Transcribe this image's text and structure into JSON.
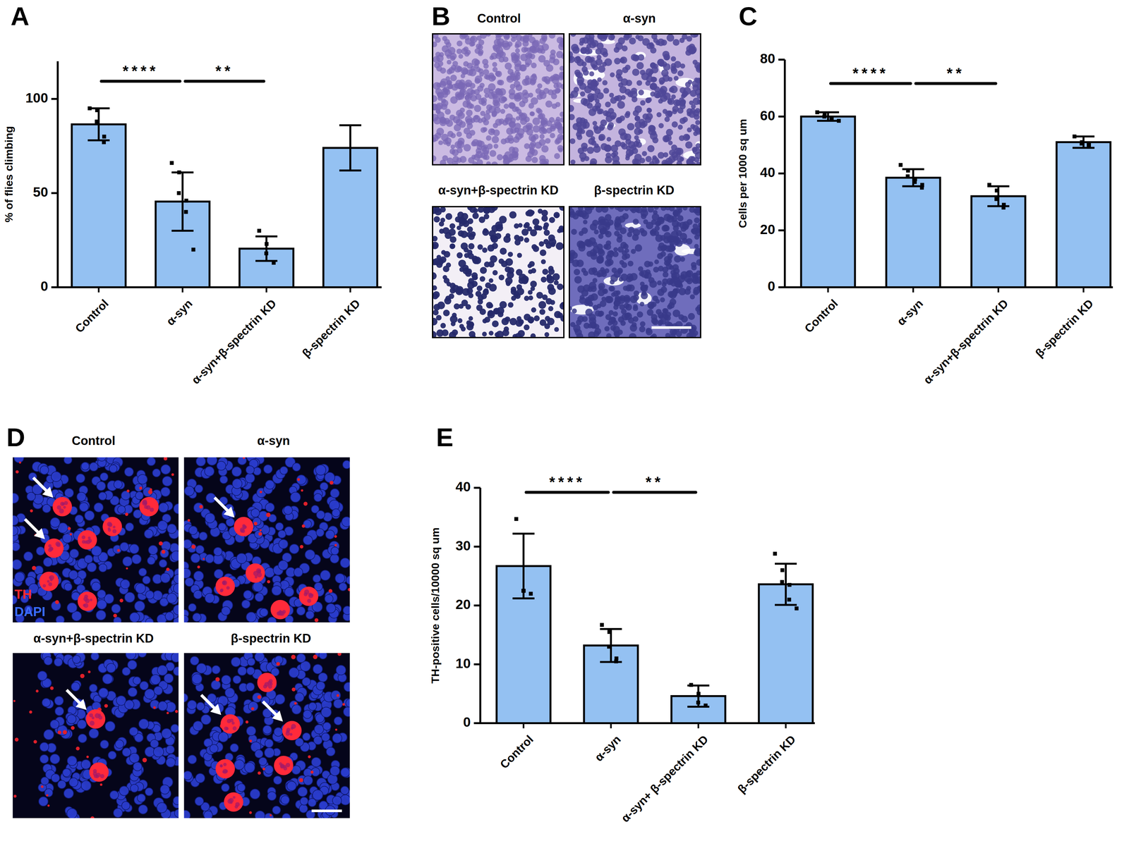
{
  "chart_data": [
    {
      "panel": "A",
      "type": "bar",
      "y_label": "% of flies climbing",
      "categories": [
        "Control",
        "α-syn",
        "α-syn+β-spectrin KD",
        "β-spectrin KD"
      ],
      "values": [
        86.5,
        45.5,
        20.5,
        74
      ],
      "errors": [
        8.5,
        15.5,
        6.5,
        12
      ],
      "points": [
        [
          95,
          94,
          88,
          80,
          77
        ],
        [
          66,
          61,
          50,
          46,
          40,
          20
        ],
        [
          30,
          23,
          18,
          13
        ],
        []
      ],
      "color": "#94c1f2",
      "ylim": [
        0,
        120
      ],
      "yticks": [
        0,
        50,
        100
      ],
      "annotations": [
        {
          "text": "****",
          "between": [
            "Control",
            "α-syn"
          ]
        },
        {
          "text": "**",
          "between": [
            "α-syn",
            "α-syn+β-spectrin KD"
          ]
        }
      ]
    },
    {
      "panel": "C",
      "type": "bar",
      "y_label": "Cells per 1000 sq um",
      "categories": [
        "Control",
        "α-syn",
        "α-syn+β-spectrin KD",
        "β-spectrin KD"
      ],
      "values": [
        60,
        38.5,
        32,
        51
      ],
      "errors": [
        1.5,
        3,
        3.5,
        2
      ],
      "points": [
        [
          61.5,
          60.5,
          60,
          59.5,
          59,
          58.5
        ],
        [
          43,
          41,
          39,
          38,
          37,
          36,
          35
        ],
        [
          36,
          34,
          31,
          29,
          28
        ],
        [
          53,
          51,
          50.5,
          50,
          50
        ]
      ],
      "color": "#94c1f2",
      "ylim": [
        0,
        80
      ],
      "yticks": [
        0,
        20,
        40,
        60,
        80
      ],
      "annotations": [
        {
          "text": "****",
          "between": [
            "Control",
            "α-syn"
          ]
        },
        {
          "text": "**",
          "between": [
            "α-syn",
            "α-syn+β-spectrin KD"
          ]
        }
      ]
    },
    {
      "panel": "E",
      "type": "bar",
      "y_label": "TH-positive cells/10000 sq um",
      "categories": [
        "Control",
        "α-syn",
        "α-syn+ β-spectrin KD",
        "β-spectrin KD"
      ],
      "values": [
        26.7,
        13.2,
        4.6,
        23.6
      ],
      "errors": [
        5.5,
        2.8,
        1.8,
        3.5
      ],
      "points": [
        [
          34.7,
          22.5,
          22.5,
          22
        ],
        [
          16.7,
          15.5,
          13,
          11,
          10.5
        ],
        [
          6.5,
          5,
          3.5,
          3
        ],
        [
          28.8,
          26,
          24,
          23.5,
          21,
          19.5
        ]
      ],
      "color": "#94c1f2",
      "ylim": [
        0,
        40
      ],
      "yticks": [
        0,
        10,
        20,
        30,
        40
      ],
      "annotations": [
        {
          "text": "****",
          "between": [
            "Control",
            "α-syn"
          ]
        },
        {
          "text": "**",
          "between": [
            "α-syn",
            "α-syn+ β-spectrin KD"
          ]
        }
      ]
    }
  ],
  "image_panels": [
    {
      "panel": "B",
      "titles": [
        "Control",
        "α-syn",
        "α-syn+β-spectrin KD",
        "β-spectrin KD"
      ]
    },
    {
      "panel": "D",
      "titles": [
        "Control",
        "α-syn",
        "α-syn+β-spectrin KD",
        "β-spectrin KD"
      ],
      "stains": [
        "TH",
        "DAPI"
      ]
    }
  ]
}
